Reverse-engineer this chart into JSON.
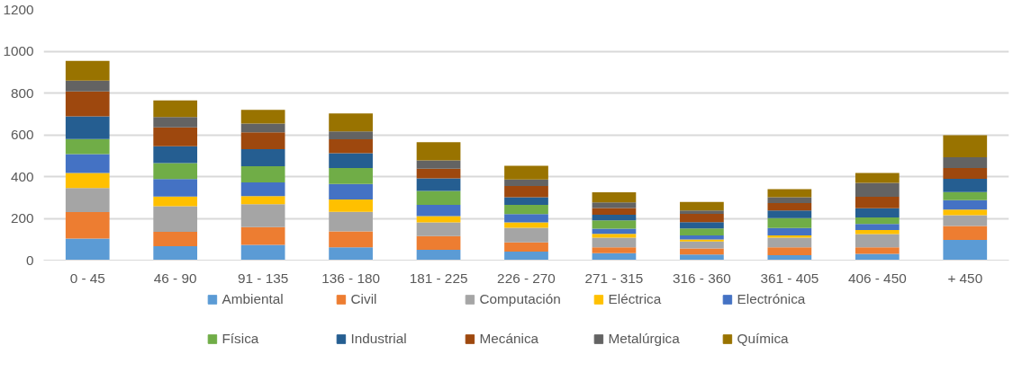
{
  "chart_data": {
    "type": "bar",
    "stacked": true,
    "categories": [
      "0 - 45",
      "46 - 90",
      "91 - 135",
      "136 - 180",
      "181 - 225",
      "226 - 270",
      "271 - 315",
      "316 - 360",
      "361 - 405",
      "406 - 450",
      "+ 450"
    ],
    "ylim": [
      0,
      1200
    ],
    "yticks": [
      0,
      200,
      400,
      600,
      800,
      1000,
      1200
    ],
    "grid": "y",
    "legend": "bottom",
    "series": [
      {
        "name": "Ambiental",
        "color": "#5b9bd5",
        "values": [
          103,
          67,
          73,
          61,
          50,
          41,
          33,
          27,
          24,
          30,
          97
        ]
      },
      {
        "name": "Civil",
        "color": "#ed7d31",
        "values": [
          127,
          69,
          85,
          77,
          65,
          44,
          28,
          29,
          37,
          31,
          66
        ]
      },
      {
        "name": "Computación",
        "color": "#a5a5a5",
        "values": [
          115,
          122,
          110,
          93,
          66,
          70,
          46,
          33,
          47,
          64,
          52
        ]
      },
      {
        "name": "Eléctrica",
        "color": "#ffc000",
        "values": [
          72,
          46,
          38,
          59,
          30,
          26,
          19,
          10,
          10,
          19,
          27
        ]
      },
      {
        "name": "Electrónica",
        "color": "#4472c4",
        "values": [
          90,
          84,
          66,
          74,
          53,
          39,
          25,
          19,
          36,
          29,
          45
        ]
      },
      {
        "name": "Física",
        "color": "#70ad47",
        "values": [
          73,
          76,
          78,
          77,
          67,
          45,
          39,
          34,
          47,
          31,
          39
        ]
      },
      {
        "name": "Industrial",
        "color": "#255e91",
        "values": [
          108,
          81,
          81,
          71,
          60,
          36,
          27,
          30,
          37,
          44,
          63
        ]
      },
      {
        "name": "Mecánica",
        "color": "#9e480e",
        "values": [
          119,
          90,
          81,
          66,
          47,
          54,
          33,
          39,
          35,
          55,
          52
        ]
      },
      {
        "name": "Metalúrgica",
        "color": "#636363",
        "values": [
          52,
          50,
          42,
          38,
          39,
          31,
          26,
          17,
          28,
          67,
          52
        ]
      },
      {
        "name": "Química",
        "color": "#997300",
        "values": [
          95,
          79,
          65,
          86,
          88,
          66,
          49,
          40,
          39,
          47,
          105
        ]
      }
    ]
  }
}
